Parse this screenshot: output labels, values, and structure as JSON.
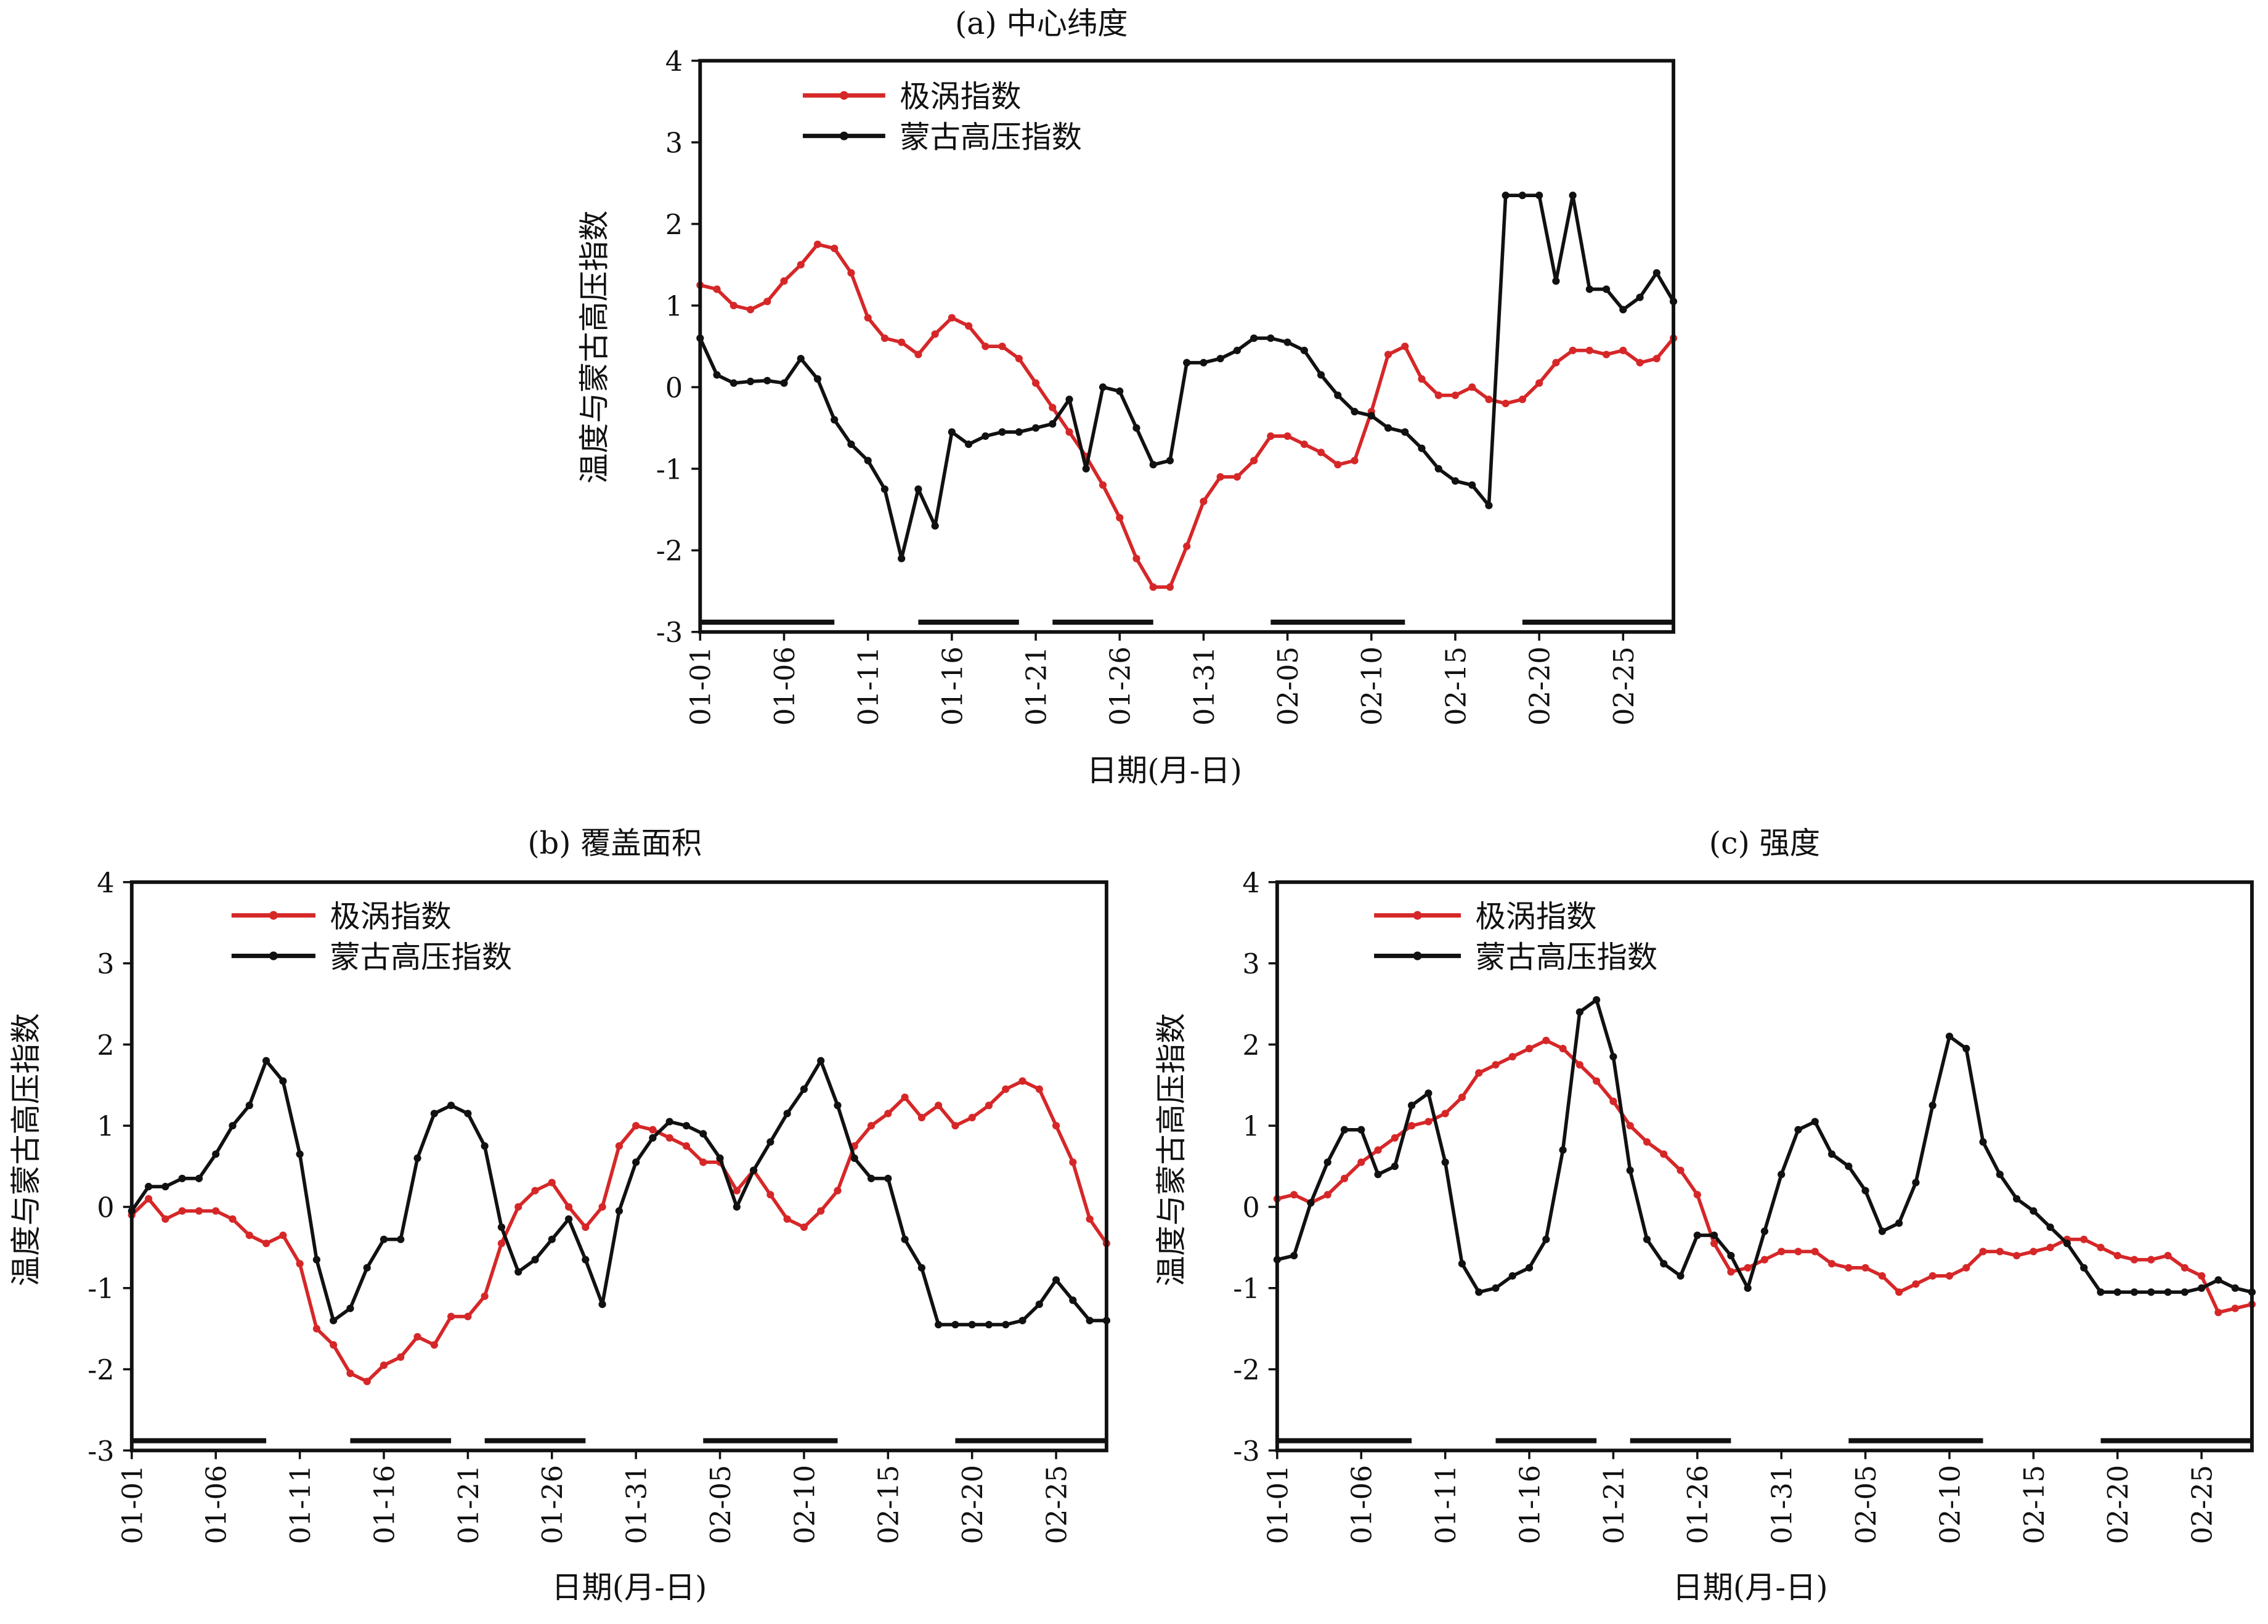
{
  "chart_data": [
    {
      "type": "line",
      "title": "(a) 中心纬度",
      "xlabel": "日期(月-日)",
      "ylabel": "温度与蒙古高压指数",
      "ylim": [
        -3,
        4
      ],
      "yticks": [
        4,
        3,
        2,
        1,
        0,
        -1,
        -2,
        -3
      ],
      "xticks": [
        "01-01",
        "01-06",
        "01-11",
        "01-16",
        "01-21",
        "01-26",
        "01-31",
        "02-05",
        "02-10",
        "02-15",
        "02-20",
        "02-25"
      ],
      "legend_position": "top-left",
      "bars_day_ranges": [
        [
          1,
          9
        ],
        [
          14,
          20
        ],
        [
          22,
          28
        ],
        [
          35,
          43
        ],
        [
          50,
          59
        ]
      ],
      "series": [
        {
          "name": "极涡指数",
          "color": "#d62728",
          "values": [
            1.25,
            1.2,
            1.0,
            0.95,
            1.05,
            1.3,
            1.5,
            1.75,
            1.7,
            1.4,
            0.85,
            0.6,
            0.55,
            0.4,
            0.65,
            0.85,
            0.75,
            0.5,
            0.5,
            0.35,
            0.05,
            -0.25,
            -0.55,
            -0.85,
            -1.2,
            -1.6,
            -2.1,
            -2.45,
            -2.45,
            -1.95,
            -1.4,
            -1.1,
            -1.1,
            -0.9,
            -0.6,
            -0.6,
            -0.7,
            -0.8,
            -0.95,
            -0.9,
            -0.3,
            0.4,
            0.5,
            0.1,
            -0.1,
            -0.1,
            0.0,
            -0.15,
            -0.2,
            -0.15,
            0.05,
            0.3,
            0.45,
            0.45,
            0.4,
            0.45,
            0.3,
            0.35,
            0.6
          ]
        },
        {
          "name": "蒙古高压指数",
          "color": "#111111",
          "values": [
            0.6,
            0.15,
            0.05,
            0.07,
            0.08,
            0.05,
            0.35,
            0.1,
            -0.4,
            -0.7,
            -0.9,
            -1.25,
            -2.1,
            -1.25,
            -1.7,
            -0.55,
            -0.7,
            -0.6,
            -0.55,
            -0.55,
            -0.5,
            -0.45,
            -0.15,
            -1.0,
            0.0,
            -0.05,
            -0.5,
            -0.95,
            -0.9,
            0.3,
            0.3,
            0.35,
            0.45,
            0.6,
            0.6,
            0.55,
            0.45,
            0.15,
            -0.1,
            -0.3,
            -0.35,
            -0.5,
            -0.55,
            -0.75,
            -1.0,
            -1.15,
            -1.2,
            -1.45,
            2.35,
            2.35,
            2.35,
            1.3,
            2.35,
            1.2,
            1.2,
            0.95,
            1.1,
            1.4,
            1.05
          ]
        }
      ]
    },
    {
      "type": "line",
      "title": "(b) 覆盖面积",
      "xlabel": "日期(月-日)",
      "ylabel": "温度与蒙古高压指数",
      "ylim": [
        -3,
        4
      ],
      "yticks": [
        4,
        3,
        2,
        1,
        0,
        -1,
        -2,
        -3
      ],
      "xticks": [
        "01-01",
        "01-06",
        "01-11",
        "01-16",
        "01-21",
        "01-26",
        "01-31",
        "02-05",
        "02-10",
        "02-15",
        "02-20",
        "02-25"
      ],
      "legend_position": "top-left",
      "bars_day_ranges": [
        [
          1,
          9
        ],
        [
          14,
          20
        ],
        [
          22,
          28
        ],
        [
          35,
          43
        ],
        [
          50,
          59
        ]
      ],
      "series": [
        {
          "name": "极涡指数",
          "color": "#d62728",
          "values": [
            -0.1,
            0.1,
            -0.15,
            -0.05,
            -0.05,
            -0.05,
            -0.15,
            -0.35,
            -0.45,
            -0.35,
            -0.7,
            -1.5,
            -1.7,
            -2.05,
            -2.15,
            -1.95,
            -1.85,
            -1.6,
            -1.7,
            -1.35,
            -1.35,
            -1.1,
            -0.45,
            0.0,
            0.2,
            0.3,
            0.0,
            -0.25,
            0.0,
            0.75,
            1.0,
            0.95,
            0.85,
            0.75,
            0.55,
            0.55,
            0.2,
            0.45,
            0.15,
            -0.15,
            -0.25,
            -0.05,
            0.2,
            0.75,
            1.0,
            1.15,
            1.35,
            1.1,
            1.25,
            1.0,
            1.1,
            1.25,
            1.45,
            1.55,
            1.45,
            1.0,
            0.55,
            -0.15,
            -0.45
          ]
        },
        {
          "name": "蒙古高压指数",
          "color": "#111111",
          "values": [
            -0.05,
            0.25,
            0.25,
            0.35,
            0.35,
            0.65,
            1.0,
            1.25,
            1.8,
            1.55,
            0.65,
            -0.65,
            -1.4,
            -1.25,
            -0.75,
            -0.4,
            -0.4,
            0.6,
            1.15,
            1.25,
            1.15,
            0.75,
            -0.25,
            -0.8,
            -0.65,
            -0.4,
            -0.15,
            -0.65,
            -1.2,
            -0.05,
            0.55,
            0.85,
            1.05,
            1.0,
            0.9,
            0.6,
            0.0,
            0.45,
            0.8,
            1.15,
            1.45,
            1.8,
            1.25,
            0.6,
            0.35,
            0.35,
            -0.4,
            -0.75,
            -1.45,
            -1.45,
            -1.45,
            -1.45,
            -1.45,
            -1.4,
            -1.2,
            -0.9,
            -1.15,
            -1.4,
            -1.4
          ]
        }
      ]
    },
    {
      "type": "line",
      "title": "(c) 强度",
      "xlabel": "日期(月-日)",
      "ylabel": "温度与蒙古高压指数",
      "ylim": [
        -3,
        4
      ],
      "yticks": [
        4,
        3,
        2,
        1,
        0,
        -1,
        -2,
        -3
      ],
      "xticks": [
        "01-01",
        "01-06",
        "01-11",
        "01-16",
        "01-21",
        "01-26",
        "01-31",
        "02-05",
        "02-10",
        "02-15",
        "02-20",
        "02-25"
      ],
      "legend_position": "top-left",
      "bars_day_ranges": [
        [
          1,
          9
        ],
        [
          14,
          20
        ],
        [
          22,
          28
        ],
        [
          35,
          43
        ],
        [
          50,
          59
        ]
      ],
      "series": [
        {
          "name": "极涡指数",
          "color": "#d62728",
          "values": [
            0.1,
            0.15,
            0.05,
            0.15,
            0.35,
            0.55,
            0.7,
            0.85,
            1.0,
            1.05,
            1.15,
            1.35,
            1.65,
            1.75,
            1.85,
            1.95,
            2.05,
            1.95,
            1.75,
            1.55,
            1.3,
            1.0,
            0.8,
            0.65,
            0.45,
            0.15,
            -0.45,
            -0.8,
            -0.75,
            -0.65,
            -0.55,
            -0.55,
            -0.55,
            -0.7,
            -0.75,
            -0.75,
            -0.85,
            -1.05,
            -0.95,
            -0.85,
            -0.85,
            -0.75,
            -0.55,
            -0.55,
            -0.6,
            -0.55,
            -0.5,
            -0.4,
            -0.4,
            -0.5,
            -0.6,
            -0.65,
            -0.65,
            -0.6,
            -0.75,
            -0.85,
            -1.3,
            -1.25,
            -1.2
          ]
        },
        {
          "name": "蒙古高压指数",
          "color": "#111111",
          "values": [
            -0.65,
            -0.6,
            0.05,
            0.55,
            0.95,
            0.95,
            0.4,
            0.5,
            1.25,
            1.4,
            0.55,
            -0.7,
            -1.05,
            -1.0,
            -0.85,
            -0.75,
            -0.4,
            0.7,
            2.4,
            2.55,
            1.85,
            0.45,
            -0.4,
            -0.7,
            -0.85,
            -0.35,
            -0.35,
            -0.6,
            -1.0,
            -0.3,
            0.4,
            0.95,
            1.05,
            0.65,
            0.5,
            0.2,
            -0.3,
            -0.2,
            0.3,
            1.25,
            2.1,
            1.95,
            0.8,
            0.4,
            0.1,
            -0.05,
            -0.25,
            -0.45,
            -0.75,
            -1.05,
            -1.05,
            -1.05,
            -1.05,
            -1.05,
            -1.05,
            -1.0,
            -0.9,
            -1.0,
            -1.05
          ]
        }
      ]
    }
  ]
}
